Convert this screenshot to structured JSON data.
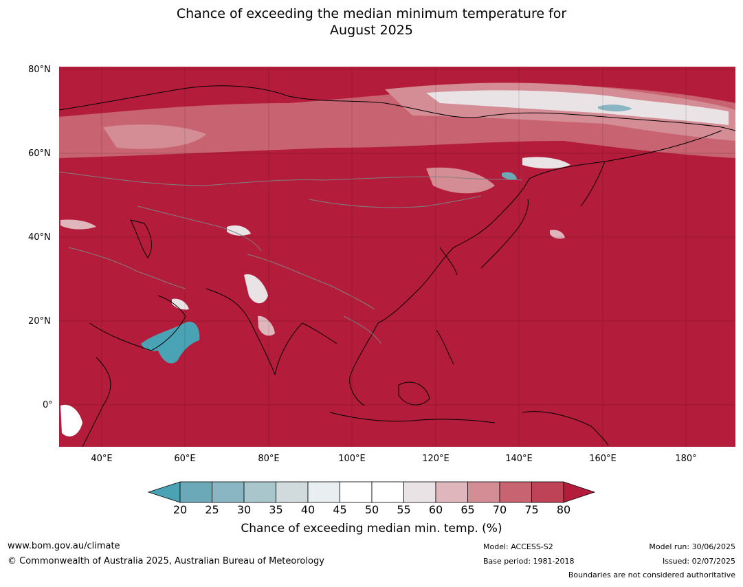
{
  "title_line1": "Chance of exceeding the median minimum temperature for",
  "title_line2": "August 2025",
  "map": {
    "lat_labels": [
      "80°N",
      "60°N",
      "40°N",
      "20°N",
      "0°"
    ],
    "lon_labels": [
      "40°E",
      "60°E",
      "80°E",
      "100°E",
      "120°E",
      "140°E",
      "160°E",
      "180°"
    ],
    "extent": {
      "lon_min": 30,
      "lon_max": 192,
      "lat_min": -10,
      "lat_max": 81
    },
    "ocean_color": "#b31d3b"
  },
  "colorbar": {
    "ticks": [
      "20",
      "25",
      "30",
      "35",
      "40",
      "45",
      "50",
      "55",
      "60",
      "65",
      "70",
      "75",
      "80"
    ],
    "colors": [
      "#6ca9b8",
      "#89b6c2",
      "#a9c6cd",
      "#d1dadd",
      "#e9eff1",
      "#ffffff",
      "#ffffff",
      "#e9e3e5",
      "#deb6bc",
      "#d48c95",
      "#c86472",
      "#bf4356"
    ],
    "under_color": "#4aa3b4",
    "over_color": "#b31d3b",
    "label": "Chance of exceeding median min. temp. (%)"
  },
  "footer": {
    "url": "www.bom.gov.au/climate",
    "copyright": "© Commonwealth of Australia 2025, Australian Bureau of Meteorology",
    "model": "Model: ACCESS-S2",
    "base_period": "Base period: 1981-2018",
    "model_run": "Model run: 30/06/2025",
    "issued": "Issued: 02/07/2025",
    "boundaries": "Boundaries are not considered authoritative"
  }
}
